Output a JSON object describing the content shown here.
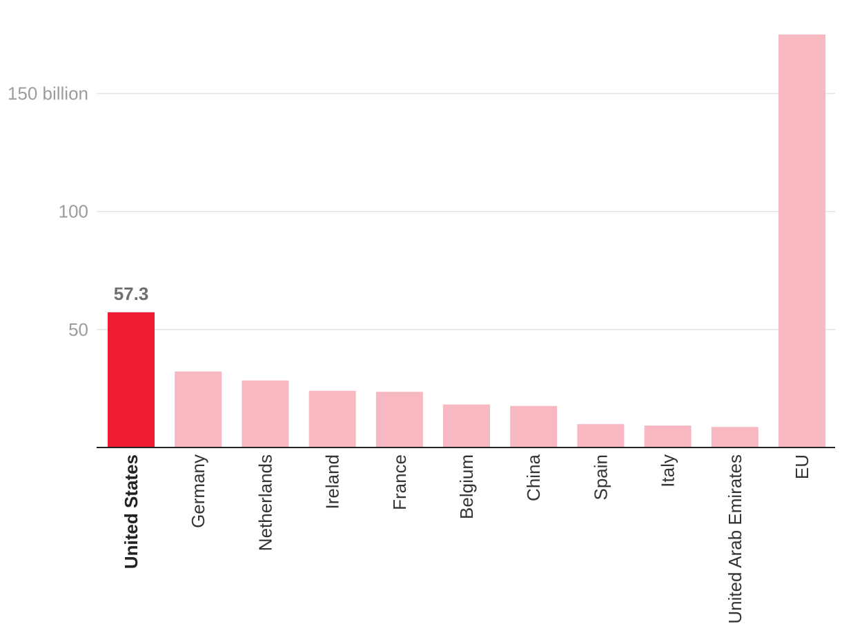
{
  "chart_data": {
    "type": "bar",
    "title": "",
    "xlabel": "",
    "ylabel": "",
    "categories": [
      "United States",
      "Germany",
      "Netherlands",
      "Ireland",
      "France",
      "Belgium",
      "China",
      "Spain",
      "Italy",
      "United Arab Emirates",
      "EU"
    ],
    "values": [
      57.3,
      32.2,
      28.4,
      24.0,
      23.6,
      18.2,
      17.6,
      9.9,
      9.3,
      8.7,
      175.0
    ],
    "highlight_index": 0,
    "highlight_value_label": "57.3",
    "ylim": [
      0,
      175
    ],
    "yticks": [
      {
        "value": 50,
        "label": "50"
      },
      {
        "value": 100,
        "label": "100"
      },
      {
        "value": 150,
        "label": "150 billion"
      }
    ],
    "grid": true,
    "colors": {
      "highlight": "#ed1c31",
      "default": "#f7b8c1",
      "eu": "#f7b8c1"
    }
  }
}
